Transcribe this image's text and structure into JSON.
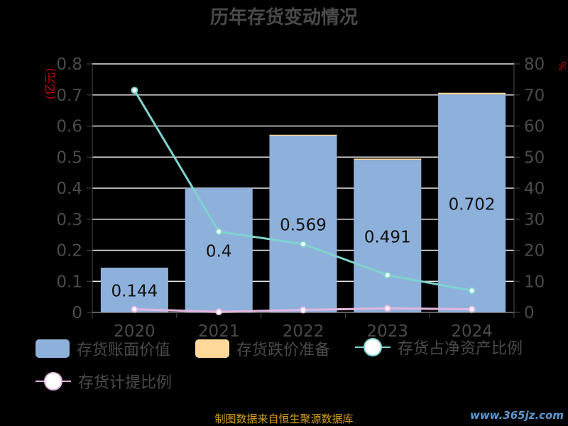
{
  "title": "历年存货变动情况",
  "colors": {
    "bar_book": "#8eb1dc",
    "bar_reserve": "#ffd89a",
    "line_ratio": "#7fd3cf",
    "line_provision": "#e3b6df",
    "left_unit": "#cc0000",
    "axis_text": "#4a4a4a",
    "grid": "#e6e6e6",
    "source": "#d4a017",
    "watermark": "#5b9bd5"
  },
  "chart_data": {
    "type": "bar",
    "categories": [
      "2020",
      "2021",
      "2022",
      "2023",
      "2024"
    ],
    "series": [
      {
        "name": "存货账面价值",
        "kind": "bar",
        "axis": "left",
        "values": [
          0.144,
          0.4,
          0.569,
          0.491,
          0.702
        ]
      },
      {
        "name": "存货跌价准备",
        "kind": "bar-stacked",
        "axis": "left",
        "values": [
          0,
          0,
          0.003,
          0.004,
          0.005
        ]
      },
      {
        "name": "存货占净资产比例",
        "kind": "line",
        "axis": "right",
        "values": [
          71.5,
          26,
          22,
          12,
          7
        ]
      },
      {
        "name": "存货计提比例",
        "kind": "line",
        "axis": "right",
        "values": [
          1,
          0.2,
          0.8,
          1.3,
          1
        ]
      }
    ],
    "data_labels": [
      "0.144",
      "0.4",
      "0.569",
      "0.491",
      "0.702"
    ],
    "y_left": {
      "label": "(亿元)",
      "ylim": [
        0,
        0.8
      ],
      "ticks": [
        "0",
        "0.1",
        "0.2",
        "0.3",
        "0.4",
        "0.5",
        "0.6",
        "0.7",
        "0.8"
      ]
    },
    "y_right": {
      "label": "%",
      "ylim": [
        0,
        80
      ],
      "ticks": [
        "0",
        "10",
        "20",
        "30",
        "40",
        "50",
        "60",
        "70",
        "80"
      ]
    },
    "grid": true,
    "legend_position": "bottom"
  },
  "footer": {
    "source": "制图数据来自恒生聚源数据库",
    "watermark": "www.365jz.com"
  }
}
